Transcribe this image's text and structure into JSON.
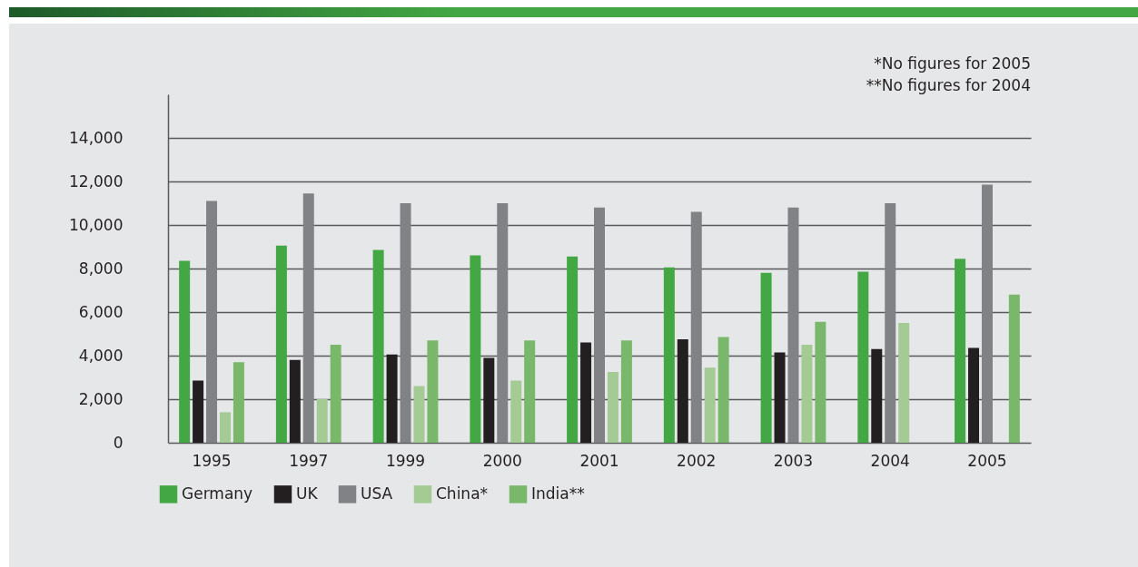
{
  "chart_data": {
    "type": "bar",
    "categories": [
      "1995",
      "1997",
      "1999",
      "2000",
      "2001",
      "2002",
      "2003",
      "2004",
      "2005"
    ],
    "series": [
      {
        "name": "Germany",
        "color": "#43a843",
        "values": [
          8350,
          9050,
          8850,
          8600,
          8550,
          8050,
          7800,
          7850,
          8450
        ]
      },
      {
        "name": "UK",
        "color": "#231f20",
        "values": [
          2850,
          3800,
          4050,
          3900,
          4600,
          4750,
          4150,
          4300,
          4350
        ]
      },
      {
        "name": "USA",
        "color": "#818285",
        "values": [
          11100,
          11450,
          11000,
          11000,
          10800,
          10600,
          10800,
          11000,
          11850
        ]
      },
      {
        "name": "China*",
        "color": "#a3cb93",
        "values": [
          1400,
          2000,
          2600,
          2850,
          3250,
          3450,
          4500,
          5500,
          null
        ]
      },
      {
        "name": "India**",
        "color": "#79b86a",
        "values": [
          3700,
          4500,
          4700,
          4700,
          4700,
          4850,
          5550,
          null,
          6800
        ]
      }
    ],
    "ylim": [
      0,
      16000
    ],
    "yticks": [
      0,
      {
        "value": 2000,
        "label": "2,000"
      },
      {
        "value": 4000,
        "label": "4,000"
      },
      {
        "value": 6000,
        "label": "6,000"
      },
      {
        "value": 8000,
        "label": "8,000"
      },
      {
        "value": 10000,
        "label": "10,000"
      },
      {
        "value": 12000,
        "label": "12,000"
      },
      {
        "value": 14000,
        "label": "14,000"
      }
    ],
    "grid": "y",
    "legend": "bottom left",
    "annotations": [
      "*No figures for 2005",
      "**No figures for 2004"
    ]
  }
}
